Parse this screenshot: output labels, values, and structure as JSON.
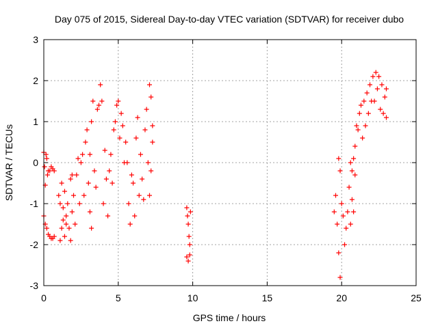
{
  "chart_data": {
    "type": "scatter",
    "title": "Day 075 of 2015, Sidereal Day-to-day VTEC variation (SDTVAR) for receiver dubo",
    "xlabel": "GPS time / hours",
    "ylabel": "SDTVAR / TECUs",
    "xlim": [
      0,
      25
    ],
    "ylim": [
      -3,
      3
    ],
    "xticks": [
      0,
      5,
      10,
      15,
      20,
      25
    ],
    "yticks": [
      -3,
      -2,
      -1,
      0,
      1,
      2,
      3
    ],
    "grid": true,
    "marker": "+",
    "marker_color": "#ff0000",
    "series": [
      {
        "name": "SDTVAR",
        "points": [
          [
            0.0,
            0.25
          ],
          [
            0.05,
            -0.1
          ],
          [
            0.1,
            -0.55
          ],
          [
            0.15,
            0.2
          ],
          [
            0.2,
            0.1
          ],
          [
            0.25,
            -0.3
          ],
          [
            0.3,
            -0.2
          ],
          [
            0.0,
            -1.3
          ],
          [
            0.1,
            -1.5
          ],
          [
            0.2,
            -1.6
          ],
          [
            0.3,
            -1.75
          ],
          [
            0.4,
            -1.8
          ],
          [
            0.5,
            -1.85
          ],
          [
            0.6,
            -1.85
          ],
          [
            0.7,
            -1.8
          ],
          [
            0.4,
            -0.2
          ],
          [
            0.5,
            -0.1
          ],
          [
            0.6,
            -0.15
          ],
          [
            0.7,
            -0.2
          ],
          [
            1.0,
            -0.8
          ],
          [
            1.1,
            -1.0
          ],
          [
            1.2,
            -0.5
          ],
          [
            1.3,
            -1.1
          ],
          [
            1.4,
            -0.7
          ],
          [
            1.5,
            -1.3
          ],
          [
            1.1,
            -1.9
          ],
          [
            1.2,
            -1.6
          ],
          [
            1.3,
            -1.4
          ],
          [
            1.4,
            -1.8
          ],
          [
            1.5,
            -1.5
          ],
          [
            1.6,
            -1.0
          ],
          [
            1.7,
            -1.6
          ],
          [
            1.8,
            -0.4
          ],
          [
            1.9,
            -0.3
          ],
          [
            1.8,
            -1.9
          ],
          [
            1.9,
            -1.2
          ],
          [
            2.0,
            -0.8
          ],
          [
            2.1,
            -1.5
          ],
          [
            2.2,
            -0.3
          ],
          [
            2.3,
            0.1
          ],
          [
            2.4,
            -1.0
          ],
          [
            2.5,
            0.0
          ],
          [
            2.6,
            0.2
          ],
          [
            2.7,
            -0.8
          ],
          [
            2.8,
            0.5
          ],
          [
            2.9,
            0.8
          ],
          [
            3.0,
            -0.5
          ],
          [
            3.1,
            -1.2
          ],
          [
            3.2,
            -1.6
          ],
          [
            3.1,
            0.2
          ],
          [
            3.2,
            1.0
          ],
          [
            3.3,
            1.5
          ],
          [
            3.4,
            -0.2
          ],
          [
            3.5,
            -0.6
          ],
          [
            3.6,
            1.3
          ],
          [
            3.7,
            1.4
          ],
          [
            3.8,
            1.9
          ],
          [
            3.9,
            1.5
          ],
          [
            4.0,
            -1.0
          ],
          [
            4.1,
            0.3
          ],
          [
            4.2,
            -0.4
          ],
          [
            4.3,
            -1.3
          ],
          [
            4.4,
            -0.2
          ],
          [
            4.5,
            0.2
          ],
          [
            4.6,
            -0.5
          ],
          [
            4.7,
            0.8
          ],
          [
            4.8,
            1.0
          ],
          [
            4.9,
            1.4
          ],
          [
            5.0,
            1.5
          ],
          [
            5.1,
            0.6
          ],
          [
            5.2,
            1.2
          ],
          [
            5.3,
            0.9
          ],
          [
            5.4,
            0.0
          ],
          [
            5.5,
            0.5
          ],
          [
            5.6,
            0.0
          ],
          [
            5.7,
            -1.0
          ],
          [
            5.8,
            -1.5
          ],
          [
            5.9,
            -0.3
          ],
          [
            6.0,
            -0.5
          ],
          [
            6.1,
            -1.3
          ],
          [
            6.2,
            0.6
          ],
          [
            6.3,
            1.1
          ],
          [
            6.4,
            -0.8
          ],
          [
            6.5,
            0.2
          ],
          [
            6.6,
            -0.4
          ],
          [
            6.7,
            -0.9
          ],
          [
            6.8,
            0.8
          ],
          [
            6.9,
            1.3
          ],
          [
            7.0,
            0.0
          ],
          [
            7.1,
            1.9
          ],
          [
            7.2,
            1.6
          ],
          [
            7.3,
            0.5
          ],
          [
            7.1,
            -0.8
          ],
          [
            7.2,
            -0.2
          ],
          [
            7.3,
            0.9
          ],
          [
            9.6,
            -1.1
          ],
          [
            9.65,
            -1.3
          ],
          [
            9.7,
            -1.5
          ],
          [
            9.75,
            -1.8
          ],
          [
            9.8,
            -2.0
          ],
          [
            9.85,
            -1.2
          ],
          [
            9.6,
            -2.3
          ],
          [
            9.7,
            -2.4
          ],
          [
            9.8,
            -2.25
          ],
          [
            19.5,
            -1.2
          ],
          [
            19.6,
            -0.8
          ],
          [
            19.7,
            -1.5
          ],
          [
            19.8,
            -2.2
          ],
          [
            19.9,
            -2.8
          ],
          [
            19.8,
            0.1
          ],
          [
            19.9,
            -0.2
          ],
          [
            20.0,
            -1.0
          ],
          [
            20.1,
            -1.3
          ],
          [
            20.2,
            -2.0
          ],
          [
            20.3,
            -1.6
          ],
          [
            20.4,
            -1.2
          ],
          [
            20.5,
            -0.6
          ],
          [
            20.6,
            -1.5
          ],
          [
            20.7,
            -0.9
          ],
          [
            20.8,
            -1.2
          ],
          [
            20.9,
            -0.3
          ],
          [
            20.6,
            0.0
          ],
          [
            20.7,
            -0.2
          ],
          [
            20.8,
            0.1
          ],
          [
            20.9,
            0.4
          ],
          [
            21.0,
            0.9
          ],
          [
            21.1,
            0.8
          ],
          [
            21.2,
            1.2
          ],
          [
            21.3,
            1.4
          ],
          [
            21.4,
            0.6
          ],
          [
            21.5,
            1.5
          ],
          [
            21.6,
            0.9
          ],
          [
            21.7,
            1.7
          ],
          [
            21.8,
            1.2
          ],
          [
            21.9,
            1.9
          ],
          [
            22.0,
            1.5
          ],
          [
            22.1,
            2.1
          ],
          [
            22.2,
            1.5
          ],
          [
            22.3,
            2.2
          ],
          [
            22.4,
            1.8
          ],
          [
            22.5,
            2.1
          ],
          [
            22.6,
            1.3
          ],
          [
            22.7,
            1.9
          ],
          [
            22.8,
            1.2
          ],
          [
            22.9,
            1.6
          ],
          [
            23.0,
            1.1
          ],
          [
            23.0,
            1.8
          ]
        ]
      }
    ]
  }
}
